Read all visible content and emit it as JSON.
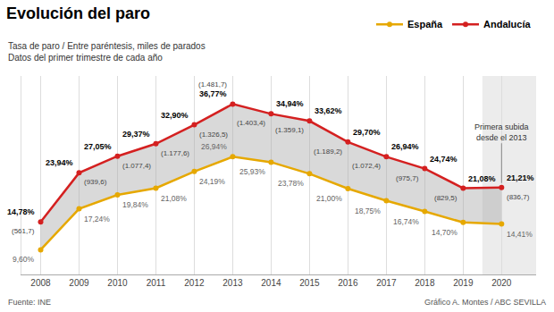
{
  "chart_data": {
    "type": "line",
    "title": "Evolución del paro",
    "subtitle": [
      "Tasa de paro / Entre paréntesis, miles de parados",
      "Datos del primer trimestre de cada año"
    ],
    "footer": [
      "Fuente: INE",
      "Gráfico A. Montes / ABC SEVILLA"
    ],
    "x": [
      2008,
      2009,
      2010,
      2011,
      2012,
      2013,
      2014,
      2015,
      2016,
      2017,
      2018,
      2019,
      2020
    ],
    "series": [
      {
        "name": "Andalucía",
        "color": "#d42020",
        "values": [
          14.78,
          23.94,
          27.05,
          29.37,
          32.9,
          36.77,
          34.94,
          33.62,
          29.7,
          26.94,
          24.74,
          21.08,
          21.21
        ],
        "value_labels": [
          "14,78%",
          "23,94%",
          "27,05%",
          "29,37%",
          "32,90%",
          "36,77%",
          "34,94%",
          "33,62%",
          "29,70%",
          "26,94%",
          "24,74%",
          "21,08%",
          "21,21%"
        ],
        "thousands": [
          561.7,
          939.6,
          1077.4,
          1177.6,
          1326.5,
          1481.7,
          1403.4,
          1359.1,
          1189.2,
          1072.4,
          975.7,
          829.5,
          836.7
        ],
        "thousands_labels": [
          "(561,7)",
          "(939,6)",
          "(1.077,4)",
          "(1.177,6)",
          "(1.326,5)",
          "(1.481,7)",
          "(1.403,4)",
          "(1.359,1)",
          "(1.189,2)",
          "(1.072,4)",
          "(975,7)",
          "(829,5)",
          "(836,7)"
        ]
      },
      {
        "name": "España",
        "color": "#e6a800",
        "values": [
          9.6,
          17.24,
          19.84,
          21.08,
          24.19,
          26.94,
          25.93,
          23.78,
          21.0,
          18.75,
          16.74,
          14.7,
          14.41
        ],
        "value_labels": [
          "9,60%",
          "17,24%",
          "19,84%",
          "21,08%",
          "24,19%",
          "26,94%",
          "25,93%",
          "23,78%",
          "21,00%",
          "18,75%",
          "16,74%",
          "14,70%",
          "14,41%"
        ]
      }
    ],
    "xlim": [
      2007.5,
      2020.9
    ],
    "xticks": [
      2008,
      2009,
      2010,
      2011,
      2012,
      2013,
      2014,
      2015,
      2016,
      2017,
      2018,
      2019,
      2020
    ],
    "ylim": [
      5,
      42
    ],
    "tick_labels": "x",
    "grid": "x",
    "legend": "upper right",
    "data_labels": true,
    "marker": "circle",
    "annotations": [
      {
        "text": "Primera subida\ndesde el 2013",
        "x": 2020,
        "y": 21.21
      }
    ]
  }
}
